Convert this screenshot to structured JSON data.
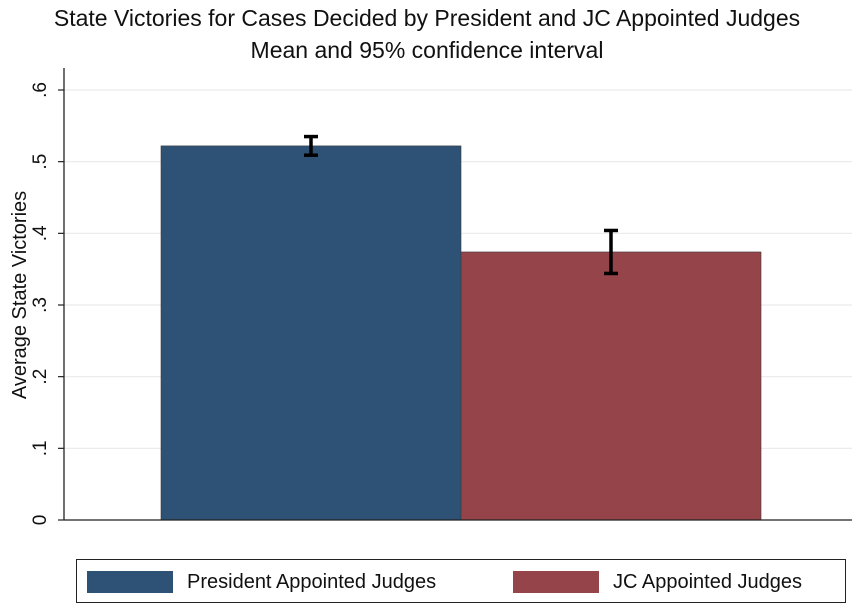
{
  "chart_data": {
    "type": "bar",
    "title": "State Victories for Cases Decided by President and JC Appointed Judges",
    "subtitle": "Mean and 95% confidence interval",
    "xlabel": "",
    "ylabel": "Average State Victories",
    "ylim": [
      0,
      0.6
    ],
    "yticks": [
      0,
      0.1,
      0.2,
      0.3,
      0.4,
      0.5,
      0.6
    ],
    "ytick_labels": [
      "0",
      ".1",
      ".2",
      ".3",
      ".4",
      ".5",
      ".6"
    ],
    "grid": true,
    "legend_position": "bottom",
    "series": [
      {
        "name": "President Appointed Judges",
        "value": 0.522,
        "ci_low": 0.509,
        "ci_high": 0.535,
        "color": "#2e5275"
      },
      {
        "name": "JC Appointed Judges",
        "value": 0.374,
        "ci_low": 0.344,
        "ci_high": 0.404,
        "color": "#95444a"
      }
    ]
  }
}
